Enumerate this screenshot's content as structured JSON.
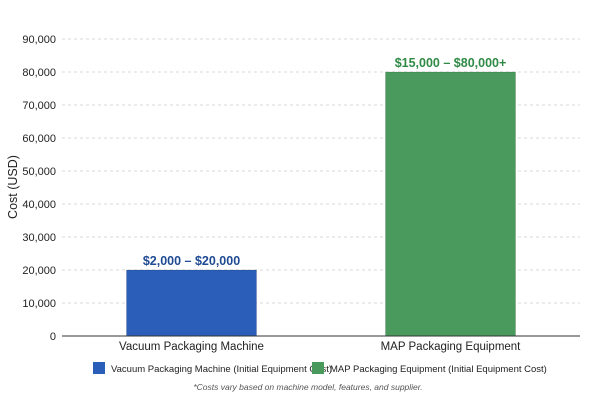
{
  "chart_data": {
    "type": "bar",
    "categories": [
      "Vacuum Packaging Machine",
      "MAP Packaging Equipment"
    ],
    "values": [
      20000,
      80000
    ],
    "value_labels": [
      "$2,000 – $20,000",
      "$15,000 – $80,000+"
    ],
    "colors": [
      "#2b5eb8",
      "#4a9a5e"
    ],
    "label_colors": [
      "#1f4a94",
      "#2f8a45"
    ],
    "title": "",
    "xlabel": "",
    "ylabel": "Cost (USD)",
    "ylim": [
      0,
      90000
    ],
    "yticks": [
      0,
      10000,
      20000,
      30000,
      40000,
      50000,
      60000,
      70000,
      80000,
      90000
    ],
    "ytick_labels": [
      "0",
      "10,000",
      "20,000",
      "30,000",
      "40,000",
      "50,000",
      "60,000",
      "70,000",
      "80,000",
      "90,000"
    ],
    "grid": true,
    "legend_position": "bottom",
    "legend": [
      {
        "label": "Vacuum Packaging Machine (Initial Equipment Cost)",
        "color": "#2b5eb8"
      },
      {
        "label": "MAP Packaging Equipment (Initial Equipment Cost)",
        "color": "#4a9a5e"
      }
    ],
    "footnote": "*Costs vary based on machine model, features, and supplier."
  }
}
